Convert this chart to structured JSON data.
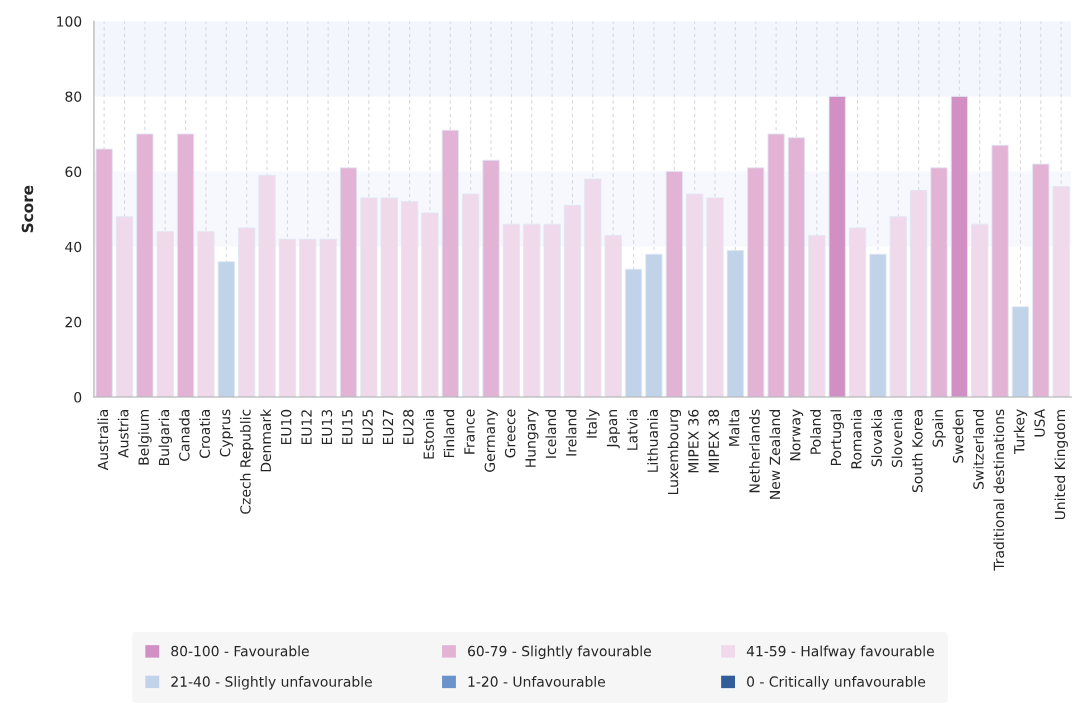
{
  "chart_data": {
    "type": "bar",
    "ylabel": "Score",
    "categories": [
      "Australia",
      "Austria",
      "Belgium",
      "Bulgaria",
      "Canada",
      "Croatia",
      "Cyprus",
      "Czech Republic",
      "Denmark",
      "EU10",
      "EU12",
      "EU13",
      "EU15",
      "EU25",
      "EU27",
      "EU28",
      "Estonia",
      "Finland",
      "France",
      "Germany",
      "Greece",
      "Hungary",
      "Iceland",
      "Ireland",
      "Italy",
      "Japan",
      "Latvia",
      "Lithuania",
      "Luxembourg",
      "MIPEX 36",
      "MIPEX 38",
      "Malta",
      "Netherlands",
      "New Zealand",
      "Norway",
      "Poland",
      "Portugal",
      "Romania",
      "Slovakia",
      "Slovenia",
      "South Korea",
      "Spain",
      "Sweden",
      "Switzerland",
      "Traditional destinations",
      "Turkey",
      "USA",
      "United Kingdom"
    ],
    "series": [
      {
        "name": "80-100 - Favourable",
        "color": "#d18fc3",
        "values": [
          null,
          null,
          null,
          null,
          null,
          null,
          null,
          null,
          null,
          null,
          null,
          null,
          null,
          null,
          null,
          null,
          null,
          null,
          null,
          null,
          null,
          null,
          null,
          null,
          null,
          null,
          null,
          null,
          null,
          null,
          null,
          null,
          null,
          null,
          null,
          null,
          80,
          null,
          null,
          null,
          null,
          null,
          80,
          null,
          null,
          null,
          null,
          null
        ]
      },
      {
        "name": "60-79 - Slightly favourable",
        "color": "#e3b3d5",
        "values": [
          66,
          null,
          70,
          null,
          70,
          null,
          null,
          null,
          null,
          null,
          null,
          null,
          61,
          null,
          null,
          null,
          null,
          71,
          null,
          63,
          null,
          null,
          null,
          null,
          null,
          null,
          null,
          null,
          60,
          null,
          null,
          null,
          61,
          70,
          69,
          null,
          null,
          null,
          null,
          null,
          null,
          61,
          null,
          null,
          67,
          null,
          62,
          null
        ]
      },
      {
        "name": "41-59 - Halfway favourable",
        "color": "#f1d9ec",
        "values": [
          null,
          48,
          null,
          44,
          null,
          44,
          null,
          45,
          59,
          42,
          42,
          42,
          null,
          53,
          53,
          52,
          49,
          null,
          54,
          null,
          46,
          46,
          46,
          51,
          58,
          43,
          null,
          null,
          null,
          54,
          53,
          null,
          null,
          null,
          null,
          43,
          null,
          45,
          null,
          48,
          55,
          null,
          null,
          46,
          null,
          null,
          null,
          56
        ]
      },
      {
        "name": "21-40 - Slightly unfavourable",
        "color": "#c0d3e8",
        "values": [
          null,
          null,
          null,
          null,
          null,
          null,
          36,
          null,
          null,
          null,
          null,
          null,
          null,
          null,
          null,
          null,
          null,
          null,
          null,
          null,
          null,
          null,
          null,
          null,
          null,
          null,
          34,
          38,
          null,
          null,
          null,
          39,
          null,
          null,
          null,
          null,
          null,
          null,
          38,
          null,
          null,
          null,
          null,
          null,
          null,
          24,
          null,
          null
        ]
      },
      {
        "name": "1-20 - Unfavourable",
        "color": "#6a93cc",
        "values": [
          null,
          null,
          null,
          null,
          null,
          null,
          null,
          null,
          null,
          null,
          null,
          null,
          null,
          null,
          null,
          null,
          null,
          null,
          null,
          null,
          null,
          null,
          null,
          null,
          null,
          null,
          null,
          null,
          null,
          null,
          null,
          null,
          null,
          null,
          null,
          null,
          null,
          null,
          null,
          null,
          null,
          null,
          null,
          null,
          null,
          null,
          null,
          null
        ]
      },
      {
        "name": "0 - Critically unfavourable",
        "color": "#335d99",
        "values": [
          null,
          null,
          null,
          null,
          null,
          null,
          null,
          null,
          null,
          null,
          null,
          null,
          null,
          null,
          null,
          null,
          null,
          null,
          null,
          null,
          null,
          null,
          null,
          null,
          null,
          null,
          null,
          null,
          null,
          null,
          null,
          null,
          null,
          null,
          null,
          null,
          null,
          null,
          null,
          null,
          null,
          null,
          null,
          null,
          null,
          null,
          null,
          null
        ]
      }
    ],
    "ylim": [
      0,
      100
    ],
    "yticks": [
      0,
      20,
      40,
      60,
      80,
      100
    ],
    "bands": [
      {
        "axis": "y",
        "from": 80,
        "to": 100,
        "color": "#f3f6fd"
      },
      {
        "axis": "y",
        "from": 40,
        "to": 60,
        "color": "#f6f8fe"
      }
    ],
    "grid": "x",
    "legend": "bottom"
  }
}
